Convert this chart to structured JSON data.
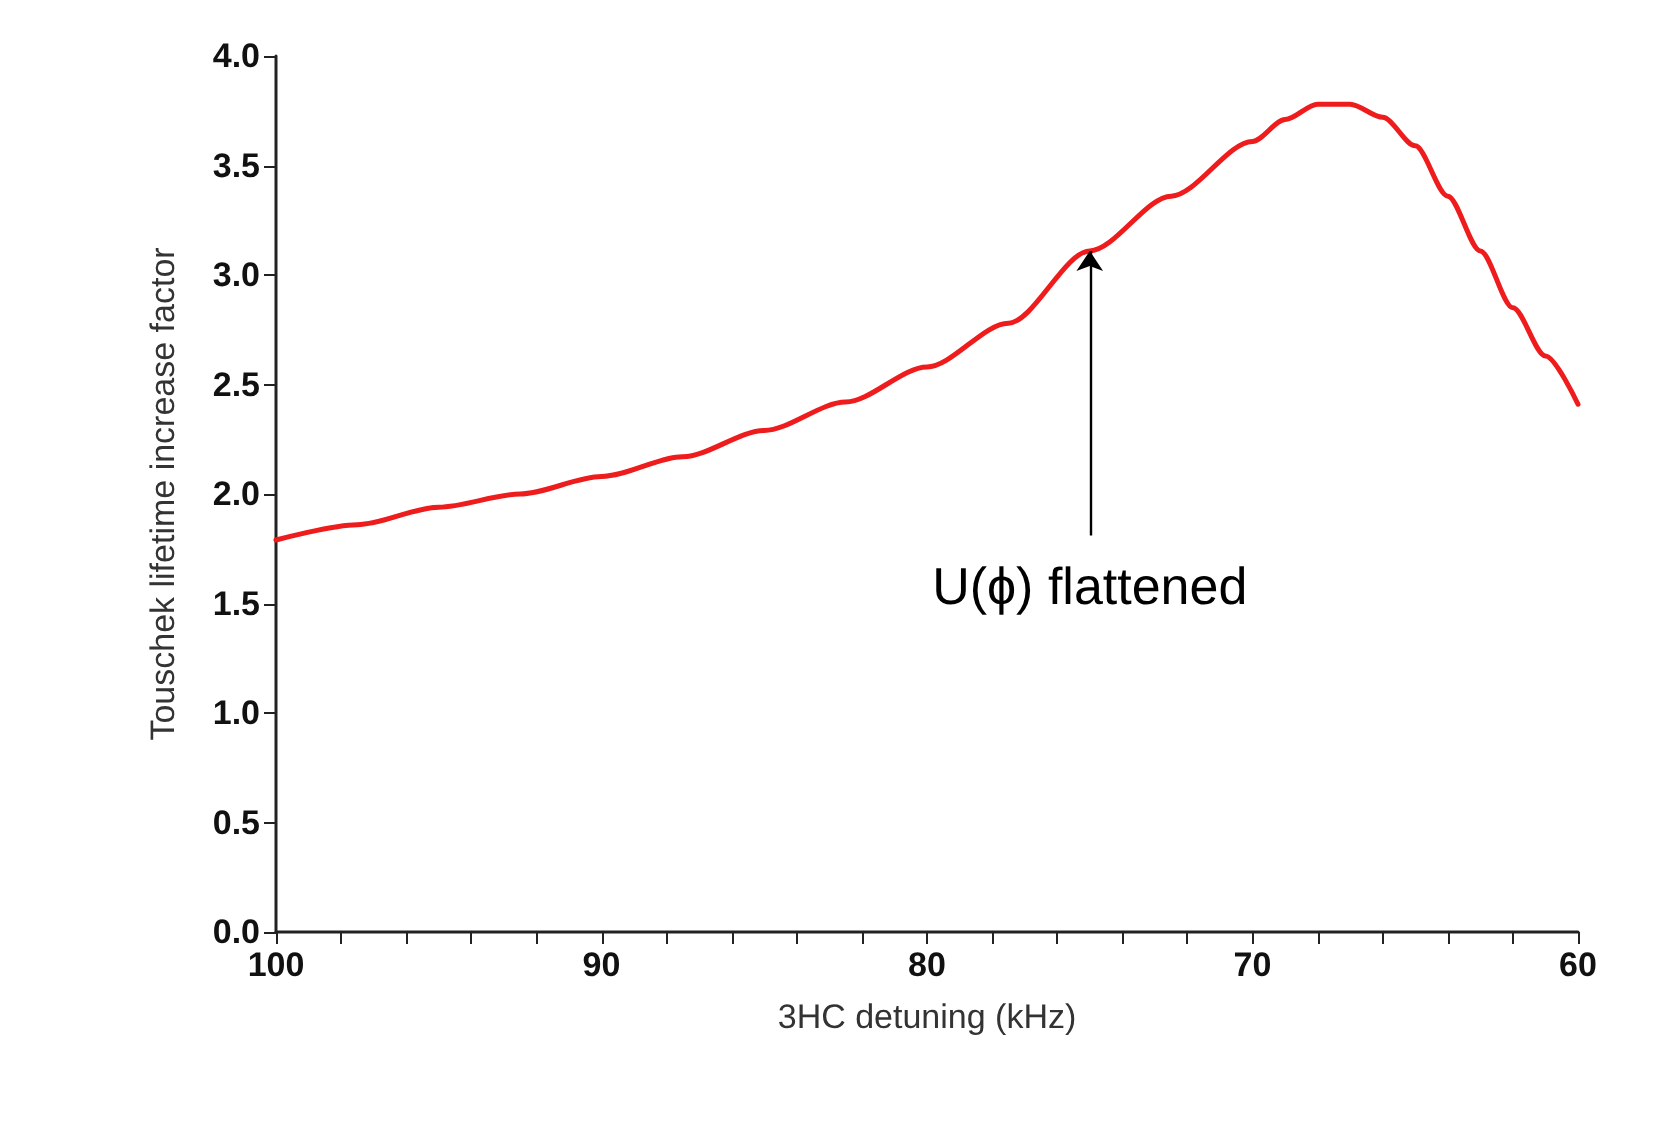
{
  "chart_data": {
    "type": "line",
    "xlabel": "3HC detuning (kHz)",
    "ylabel": "Touschek lifetime increase factor",
    "x": [
      100,
      97.5,
      95,
      92.5,
      90,
      87.5,
      85,
      82.5,
      80,
      77.5,
      75,
      72.5,
      70,
      69,
      68,
      67,
      66,
      65,
      64,
      63,
      62,
      61,
      60
    ],
    "series": [
      {
        "color": "#ee1c1c",
        "values": [
          1.79,
          1.86,
          1.94,
          2.0,
          2.08,
          2.17,
          2.29,
          2.42,
          2.58,
          2.78,
          3.11,
          3.36,
          3.61,
          3.71,
          3.78,
          3.78,
          3.72,
          3.59,
          3.36,
          3.11,
          2.85,
          2.63,
          2.41
        ]
      }
    ],
    "xlim": [
      100,
      60
    ],
    "xticks": [
      100,
      {
        "value": 98,
        "label": null
      },
      {
        "value": 96,
        "label": null
      },
      {
        "value": 94,
        "label": null
      },
      {
        "value": 92,
        "label": null
      },
      90,
      {
        "value": 88,
        "label": null
      },
      {
        "value": 86,
        "label": null
      },
      {
        "value": 84,
        "label": null
      },
      {
        "value": 82,
        "label": null
      },
      80,
      {
        "value": 78,
        "label": null
      },
      {
        "value": 76,
        "label": null
      },
      {
        "value": 74,
        "label": null
      },
      {
        "value": 72,
        "label": null
      },
      70,
      {
        "value": 68,
        "label": null
      },
      {
        "value": 66,
        "label": null
      },
      {
        "value": 64,
        "label": null
      },
      {
        "value": 62,
        "label": null
      },
      60
    ],
    "ylim": [
      0,
      4
    ],
    "yticks": [
      {
        "value": 0,
        "label": "0.0"
      },
      {
        "value": 0.5,
        "label": "0.5"
      },
      {
        "value": 1,
        "label": "1.0"
      },
      {
        "value": 1.5,
        "label": "1.5"
      },
      {
        "value": 2,
        "label": "2.0"
      },
      {
        "value": 2.5,
        "label": "2.5"
      },
      {
        "value": 3,
        "label": "3.0"
      },
      {
        "value": 3.5,
        "label": "3.5"
      },
      {
        "value": 4,
        "label": "4.0"
      }
    ],
    "grid": false,
    "marker": "none",
    "line_style": "solid",
    "annotations": [
      {
        "text": "U(ϕ) flattened",
        "x": 75,
        "y": 3.11
      }
    ]
  }
}
